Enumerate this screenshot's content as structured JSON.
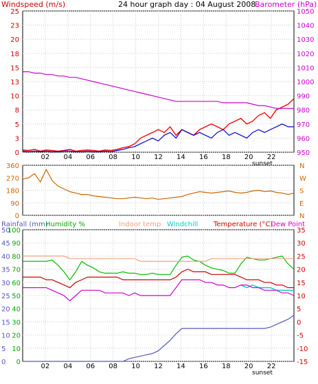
{
  "header": {
    "title": "24 hour graph day : 04 August 2008",
    "left_label": "Windspeed (m/s)",
    "right_label": "Barometer (hPa)"
  },
  "mid_labels": {
    "sunset": "sunset"
  },
  "bottom_legend": {
    "rainfall": "Rainfall (mm)",
    "humidity": "Humidity %",
    "indoor": "Indoor temp",
    "windchill": "Windchill",
    "temperature": "Temperature (°C)",
    "dewpoint": "Dew Point"
  },
  "colors": {
    "wind": "#ff0000",
    "gust_avg": "#0000cc",
    "baro": "#cc00cc",
    "dir": "#cc6600",
    "humidity": "#00bb00",
    "indoor": "#f0a080",
    "windchill": "#00cccc",
    "temp": "#cc0000",
    "dew": "#cc00cc",
    "rain": "#5555bb",
    "grid": "#c8c8c8"
  },
  "chart_data": [
    {
      "type": "line",
      "panel": "wind-baro",
      "x_ticks": [
        "02",
        "04",
        "06",
        "08",
        "10",
        "12",
        "14",
        "16",
        "18",
        "20",
        "22"
      ],
      "y_left_ticks": [
        "0",
        "3",
        "5",
        "8",
        "10",
        "13",
        "15",
        "18",
        "20",
        "23",
        "25"
      ],
      "y_left_range": [
        0,
        25
      ],
      "y_right_ticks": [
        "950",
        "960",
        "970",
        "980",
        "990",
        "1000",
        "1010",
        "1020",
        "1030",
        "1040",
        "1050"
      ],
      "y_right_range": [
        950,
        1050
      ],
      "series": [
        {
          "values": [
            0.4,
            0.3,
            0.5,
            0.2,
            0.4,
            0.3,
            0.2,
            0.3,
            0.5,
            0.2,
            0.3,
            0.4,
            0.3,
            0.2,
            0.4,
            0.3,
            0.5,
            0.8,
            1.0,
            1.5,
            2.5,
            3.0,
            3.5,
            4.0,
            3.5,
            4.5,
            3.0,
            4.0,
            3.5,
            3.0,
            4.0,
            4.5,
            5.0,
            4.5,
            4.0,
            5.0,
            5.5,
            6.0,
            5.0,
            5.5,
            6.5,
            7.0,
            6.0,
            7.5,
            8.0,
            8.5,
            9.5
          ]
        },
        {
          "values": [
            0.2,
            0.1,
            0.2,
            0.1,
            0.2,
            0.1,
            0.1,
            0.2,
            0.2,
            0.1,
            0.1,
            0.2,
            0.1,
            0.1,
            0.2,
            0.1,
            0.3,
            0.5,
            0.8,
            1.0,
            1.5,
            2.0,
            2.5,
            2.0,
            3.0,
            3.5,
            2.5,
            4.0,
            3.5,
            3.0,
            3.5,
            3.0,
            2.5,
            3.5,
            4.0,
            3.0,
            3.5,
            3.0,
            2.5,
            3.5,
            4.0,
            3.5,
            4.0,
            4.5,
            5.0,
            4.5,
            4.5
          ]
        },
        {
          "values": [
            1007,
            1007,
            1006,
            1006,
            1005,
            1005,
            1004,
            1004,
            1003,
            1003,
            1002,
            1001,
            1000,
            999,
            998,
            997,
            996,
            995,
            994,
            993,
            992,
            991,
            990,
            989,
            988,
            987,
            986,
            986,
            986,
            986,
            986,
            986,
            986,
            986,
            985,
            985,
            985,
            985,
            985,
            984,
            983,
            983,
            982,
            981,
            981,
            981,
            981
          ]
        }
      ]
    },
    {
      "type": "line",
      "panel": "wind-direction",
      "x_ticks": [
        "02",
        "04",
        "06",
        "08",
        "10",
        "12",
        "14",
        "16",
        "18",
        "20",
        "22"
      ],
      "y_left_ticks": [
        "0",
        "90",
        "180",
        "270",
        "360"
      ],
      "y_left_range": [
        0,
        360
      ],
      "y_right_ticks": [
        "N",
        "E",
        "S",
        "W",
        "N"
      ],
      "series": [
        {
          "values": [
            260,
            270,
            300,
            240,
            330,
            250,
            210,
            190,
            170,
            160,
            150,
            150,
            140,
            135,
            130,
            125,
            120,
            120,
            125,
            130,
            125,
            120,
            125,
            115,
            120,
            125,
            130,
            135,
            150,
            160,
            170,
            165,
            160,
            165,
            170,
            175,
            165,
            160,
            165,
            175,
            180,
            170,
            175,
            165,
            160,
            150,
            160
          ]
        }
      ]
    },
    {
      "type": "line",
      "panel": "temperature-humidity-rain",
      "x_ticks": [
        "02",
        "04",
        "06",
        "08",
        "10",
        "12",
        "14",
        "16",
        "18",
        "20",
        "22"
      ],
      "y_left_ticks": [
        "0",
        "10",
        "20",
        "30",
        "40",
        "50",
        "60",
        "70",
        "80",
        "90",
        "100"
      ],
      "y_left_range": [
        0,
        100
      ],
      "y_rain_ticks": [
        "0",
        "5",
        "10",
        "15",
        "20",
        "25",
        "30",
        "35",
        "40",
        "45",
        "50"
      ],
      "y_rain_range": [
        0,
        50
      ],
      "y_right_ticks": [
        "-15",
        "-10",
        "-5",
        "0",
        "5",
        "10",
        "15",
        "20",
        "25",
        "30",
        "35"
      ],
      "y_right_range": [
        -15,
        35
      ],
      "series": [
        {
          "values": [
            76,
            76,
            76,
            76,
            76,
            77,
            73,
            68,
            62,
            68,
            76,
            73,
            71,
            68,
            67,
            67,
            67,
            68,
            67,
            67,
            66,
            66,
            67,
            66,
            66,
            66,
            73,
            79,
            80,
            77,
            76,
            73,
            71,
            70,
            69,
            67,
            67,
            74,
            79,
            78,
            77,
            77,
            78,
            79,
            80,
            74,
            70
          ]
        },
        {
          "values": [
            25,
            25,
            25,
            25,
            25,
            25,
            25,
            25,
            24,
            24,
            24,
            24,
            24,
            24,
            24,
            24,
            24,
            24,
            24,
            24,
            23,
            23,
            23,
            23,
            23,
            23,
            23,
            23,
            23,
            23,
            23,
            23,
            24,
            24,
            24,
            24,
            24,
            24,
            24,
            24,
            24,
            24,
            24,
            24,
            24,
            24,
            24
          ]
        },
        {
          "values": [
            null,
            null,
            null,
            null,
            null,
            null,
            null,
            null,
            null,
            null,
            null,
            null,
            null,
            null,
            null,
            null,
            null,
            null,
            null,
            null,
            null,
            null,
            null,
            null,
            null,
            null,
            null,
            null,
            null,
            null,
            null,
            null,
            null,
            null,
            null,
            null,
            null,
            14,
            13,
            14,
            13,
            13,
            13,
            12,
            12,
            12,
            12
          ]
        },
        {
          "values": [
            17,
            17,
            17,
            17,
            16,
            16,
            15,
            14,
            13,
            15,
            16,
            17,
            17,
            17,
            17,
            17,
            17,
            16,
            16,
            16,
            16,
            16,
            16,
            16,
            16,
            16,
            17,
            19,
            20,
            19,
            19,
            19,
            18,
            18,
            18,
            18,
            18,
            17,
            16,
            16,
            16,
            15,
            15,
            14,
            14,
            13,
            13
          ]
        },
        {
          "values": [
            13,
            13,
            13,
            13,
            13,
            12,
            11,
            10,
            8,
            10,
            12,
            12,
            12,
            12,
            11,
            11,
            11,
            11,
            10,
            11,
            10,
            10,
            10,
            10,
            10,
            10,
            13,
            16,
            16,
            16,
            16,
            15,
            15,
            14,
            14,
            13,
            13,
            14,
            14,
            13,
            13,
            12,
            12,
            12,
            11,
            11,
            10
          ]
        },
        {
          "values": [
            0,
            0,
            0,
            0,
            0,
            0,
            0,
            0,
            0,
            0,
            0,
            0,
            0,
            0,
            0,
            0,
            0,
            0,
            1,
            1.5,
            2,
            2.5,
            3,
            4,
            6,
            8,
            10.5,
            12.5,
            12.5,
            12.5,
            12.5,
            12.5,
            12.5,
            12.5,
            12.5,
            12.5,
            12.5,
            12.5,
            12.5,
            12.5,
            12.5,
            12.5,
            13,
            14,
            15,
            16,
            17.5
          ]
        }
      ]
    }
  ]
}
